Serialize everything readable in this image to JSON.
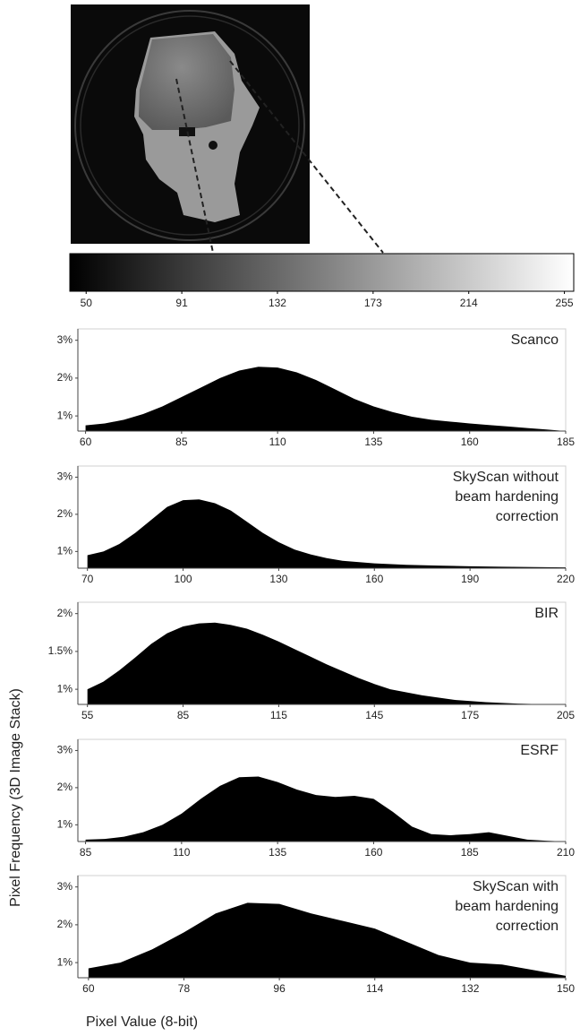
{
  "chart_data": [
    {
      "type": "colorbar",
      "colors": [
        "#000000",
        "#ffffff"
      ],
      "xlim": [
        43,
        259
      ],
      "xticks": [
        50,
        91,
        132,
        173,
        214,
        255
      ]
    },
    {
      "type": "area",
      "title": "Scanco",
      "color": "#000000",
      "x": [
        60,
        65,
        70,
        75,
        80,
        85,
        90,
        95,
        100,
        105,
        110,
        115,
        120,
        125,
        130,
        135,
        140,
        145,
        150,
        155,
        160,
        165,
        170,
        175,
        180,
        185
      ],
      "values": [
        0.75,
        0.8,
        0.9,
        1.05,
        1.25,
        1.5,
        1.75,
        2.0,
        2.2,
        2.3,
        2.28,
        2.15,
        1.95,
        1.7,
        1.45,
        1.25,
        1.1,
        0.98,
        0.9,
        0.85,
        0.8,
        0.76,
        0.72,
        0.68,
        0.64,
        0.6
      ],
      "xlim": [
        58,
        185
      ],
      "xticks": [
        60,
        85,
        110,
        135,
        160,
        185
      ],
      "ylim": [
        0.6,
        3.3
      ],
      "yticks": [
        {
          "value": 1,
          "label": "1%"
        },
        {
          "value": 2,
          "label": "2%"
        },
        {
          "value": 3,
          "label": "3%"
        }
      ]
    },
    {
      "type": "area",
      "title": "SkyScan without\nbeam hardening\ncorrection",
      "color": "#000000",
      "x": [
        70,
        75,
        80,
        85,
        90,
        95,
        100,
        105,
        110,
        115,
        120,
        125,
        130,
        135,
        140,
        145,
        150,
        160,
        170,
        180,
        190,
        200,
        210,
        220
      ],
      "values": [
        0.9,
        1.0,
        1.2,
        1.5,
        1.85,
        2.2,
        2.38,
        2.4,
        2.3,
        2.1,
        1.8,
        1.5,
        1.25,
        1.05,
        0.92,
        0.82,
        0.75,
        0.68,
        0.64,
        0.62,
        0.6,
        0.59,
        0.58,
        0.57
      ],
      "xlim": [
        67,
        220
      ],
      "xticks": [
        70,
        100,
        130,
        160,
        190,
        220
      ],
      "ylim": [
        0.55,
        3.3
      ],
      "yticks": [
        {
          "value": 1,
          "label": "1%"
        },
        {
          "value": 2,
          "label": "2%"
        },
        {
          "value": 3,
          "label": "3%"
        }
      ]
    },
    {
      "type": "area",
      "title": "BIR",
      "color": "#000000",
      "x": [
        55,
        60,
        65,
        70,
        75,
        80,
        85,
        90,
        95,
        100,
        105,
        110,
        115,
        120,
        125,
        130,
        135,
        140,
        145,
        150,
        160,
        170,
        180,
        190,
        200,
        205
      ],
      "values": [
        1.0,
        1.1,
        1.25,
        1.42,
        1.6,
        1.74,
        1.83,
        1.87,
        1.88,
        1.85,
        1.8,
        1.72,
        1.63,
        1.53,
        1.43,
        1.33,
        1.24,
        1.15,
        1.07,
        1.0,
        0.92,
        0.86,
        0.83,
        0.81,
        0.8,
        0.8
      ],
      "xlim": [
        52,
        205
      ],
      "xticks": [
        55,
        85,
        115,
        145,
        175,
        205
      ],
      "ylim": [
        0.8,
        2.15
      ],
      "yticks": [
        {
          "value": 1,
          "label": "1%"
        },
        {
          "value": 1.5,
          "label": "1.5%"
        },
        {
          "value": 2,
          "label": "2%"
        }
      ]
    },
    {
      "type": "area",
      "title": "ESRF",
      "color": "#000000",
      "x": [
        85,
        90,
        95,
        100,
        105,
        110,
        115,
        120,
        125,
        130,
        135,
        140,
        145,
        150,
        155,
        160,
        165,
        170,
        175,
        180,
        185,
        190,
        195,
        200,
        205,
        210
      ],
      "values": [
        0.6,
        0.62,
        0.68,
        0.8,
        1.0,
        1.3,
        1.7,
        2.05,
        2.28,
        2.3,
        2.15,
        1.95,
        1.8,
        1.75,
        1.78,
        1.7,
        1.35,
        0.95,
        0.75,
        0.72,
        0.75,
        0.8,
        0.7,
        0.6,
        0.57,
        0.55
      ],
      "xlim": [
        83,
        210
      ],
      "xticks": [
        85,
        110,
        135,
        160,
        185,
        210
      ],
      "ylim": [
        0.55,
        3.3
      ],
      "yticks": [
        {
          "value": 1,
          "label": "1%"
        },
        {
          "value": 2,
          "label": "2%"
        },
        {
          "value": 3,
          "label": "3%"
        }
      ]
    },
    {
      "type": "area",
      "title": "SkyScan with\nbeam hardening\ncorrection",
      "color": "#000000",
      "x": [
        60,
        66,
        72,
        78,
        84,
        90,
        96,
        102,
        108,
        114,
        120,
        126,
        132,
        138,
        144,
        150
      ],
      "values": [
        0.85,
        1.0,
        1.35,
        1.8,
        2.3,
        2.58,
        2.55,
        2.3,
        2.1,
        1.9,
        1.55,
        1.2,
        1.0,
        0.95,
        0.8,
        0.65
      ],
      "xlim": [
        58,
        150
      ],
      "xticks": [
        60,
        78,
        96,
        114,
        132,
        150
      ],
      "ylim": [
        0.6,
        3.3
      ],
      "yticks": [
        {
          "value": 1,
          "label": "1%"
        },
        {
          "value": 2,
          "label": "2%"
        },
        {
          "value": 3,
          "label": "3%"
        }
      ]
    }
  ],
  "y_label": "Pixel Frequency (3D Image Stack)",
  "x_label": "Pixel Value (8-bit)"
}
